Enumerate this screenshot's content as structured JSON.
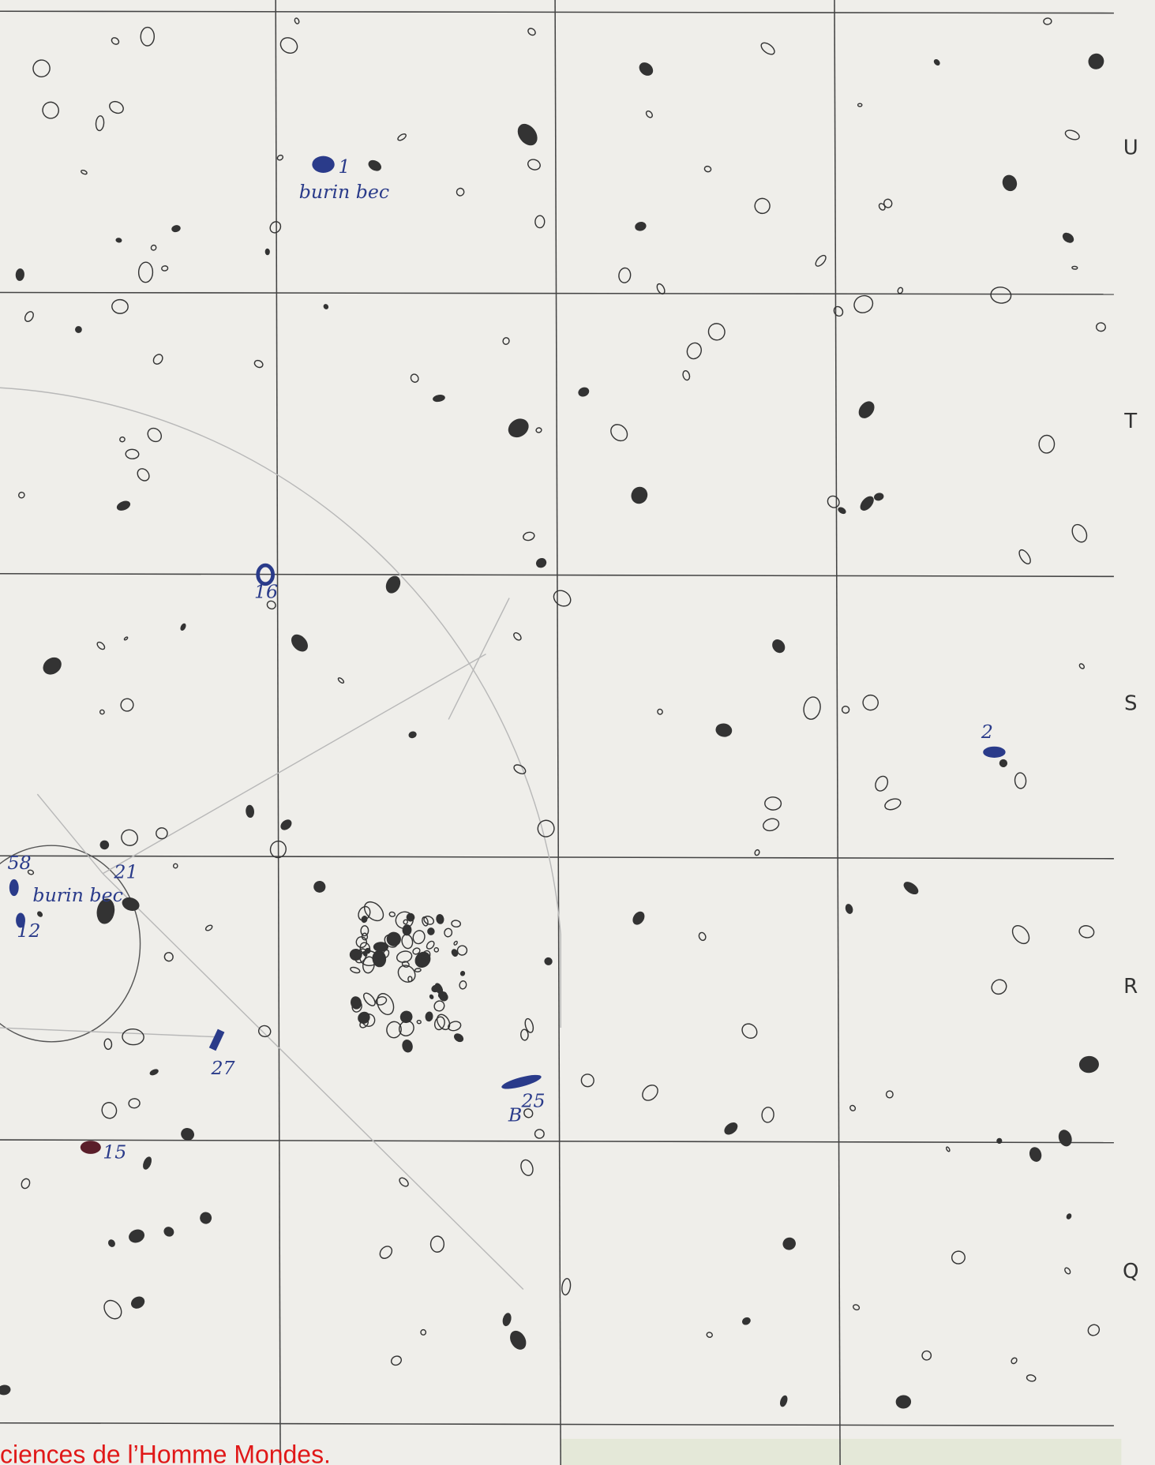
{
  "row_labels": [
    "U",
    "T",
    "S",
    "R",
    "Q"
  ],
  "annotations": [
    "1",
    "burin bec",
    "16",
    "21",
    "58",
    "12",
    "burin bec",
    "27",
    "25",
    "B",
    "15",
    "2"
  ],
  "watermark": "ciences de l’Homme Mondes."
}
